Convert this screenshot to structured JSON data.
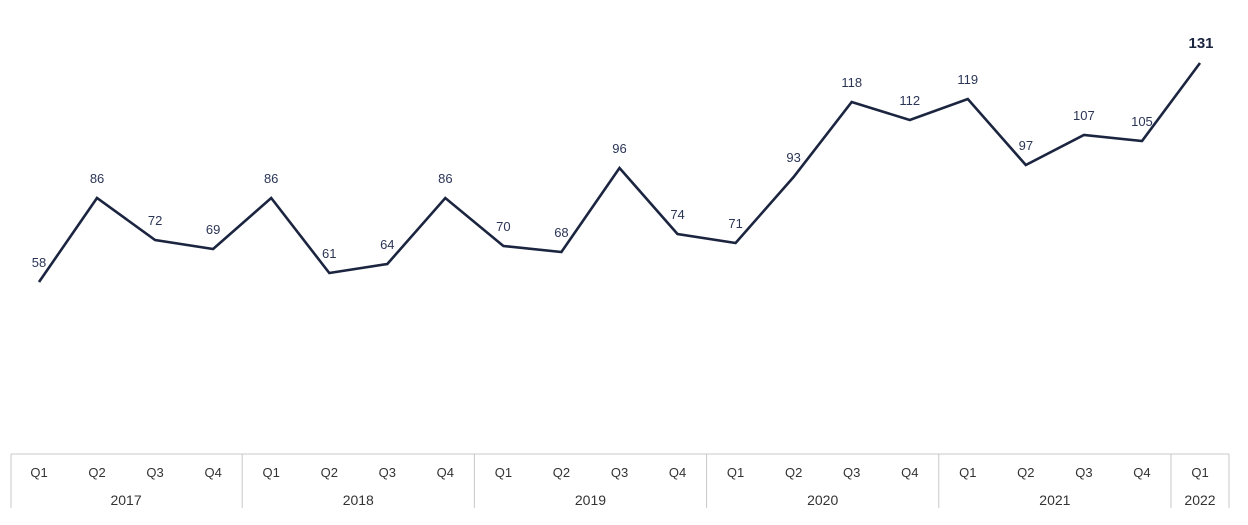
{
  "chart_data": {
    "type": "line",
    "title": "",
    "xlabel": "",
    "ylabel": "",
    "line_color": "#1c2540",
    "grid": false,
    "legend": "none",
    "ylim": [
      0,
      140
    ],
    "categories": [
      {
        "year": "2017",
        "quarter": "Q1"
      },
      {
        "year": "2017",
        "quarter": "Q2"
      },
      {
        "year": "2017",
        "quarter": "Q3"
      },
      {
        "year": "2017",
        "quarter": "Q4"
      },
      {
        "year": "2018",
        "quarter": "Q1"
      },
      {
        "year": "2018",
        "quarter": "Q2"
      },
      {
        "year": "2018",
        "quarter": "Q3"
      },
      {
        "year": "2018",
        "quarter": "Q4"
      },
      {
        "year": "2019",
        "quarter": "Q1"
      },
      {
        "year": "2019",
        "quarter": "Q2"
      },
      {
        "year": "2019",
        "quarter": "Q3"
      },
      {
        "year": "2019",
        "quarter": "Q4"
      },
      {
        "year": "2020",
        "quarter": "Q1"
      },
      {
        "year": "2020",
        "quarter": "Q2"
      },
      {
        "year": "2020",
        "quarter": "Q3"
      },
      {
        "year": "2020",
        "quarter": "Q4"
      },
      {
        "year": "2021",
        "quarter": "Q1"
      },
      {
        "year": "2021",
        "quarter": "Q2"
      },
      {
        "year": "2021",
        "quarter": "Q3"
      },
      {
        "year": "2021",
        "quarter": "Q4"
      },
      {
        "year": "2022",
        "quarter": "Q1"
      }
    ],
    "years": [
      "2017",
      "2018",
      "2019",
      "2020",
      "2021",
      "2022"
    ],
    "series": [
      {
        "values": [
          58,
          86,
          72,
          69,
          86,
          61,
          64,
          86,
          70,
          68,
          96,
          74,
          71,
          93,
          118,
          112,
          119,
          97,
          107,
          105,
          131
        ]
      }
    ]
  }
}
